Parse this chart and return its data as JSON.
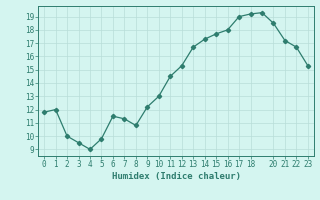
{
  "x": [
    0,
    1,
    2,
    3,
    4,
    5,
    6,
    7,
    8,
    9,
    10,
    11,
    12,
    13,
    14,
    15,
    16,
    17,
    18,
    19,
    20,
    21,
    22,
    23
  ],
  "y": [
    11.8,
    12.0,
    10.0,
    9.5,
    9.0,
    9.8,
    11.5,
    11.3,
    10.8,
    12.2,
    13.0,
    14.5,
    15.3,
    16.7,
    17.3,
    17.7,
    18.0,
    19.0,
    19.2,
    19.3,
    18.5,
    17.2,
    16.7,
    15.3
  ],
  "line_color": "#2e7d6e",
  "marker": "D",
  "marker_size": 2.2,
  "bg_color": "#d4f5f0",
  "grid_color": "#b8ddd8",
  "tick_color": "#2e7d6e",
  "label_color": "#2e7d6e",
  "xlabel": "Humidex (Indice chaleur)",
  "xlim": [
    -0.5,
    23.5
  ],
  "ylim": [
    8.5,
    19.8
  ],
  "yticks": [
    9,
    10,
    11,
    12,
    13,
    14,
    15,
    16,
    17,
    18,
    19
  ],
  "xticks": [
    0,
    1,
    2,
    3,
    4,
    5,
    6,
    7,
    8,
    9,
    10,
    11,
    12,
    13,
    14,
    15,
    16,
    17,
    18,
    20,
    21,
    22,
    23
  ],
  "xtick_labels": [
    "0",
    "1",
    "2",
    "3",
    "4",
    "5",
    "6",
    "7",
    "8",
    "9",
    "10",
    "11",
    "12",
    "13",
    "14",
    "15",
    "16",
    "17",
    "18",
    "20",
    "21",
    "22",
    "23"
  ],
  "xlabel_fontsize": 6.5,
  "tick_fontsize": 5.5,
  "line_width": 0.9
}
